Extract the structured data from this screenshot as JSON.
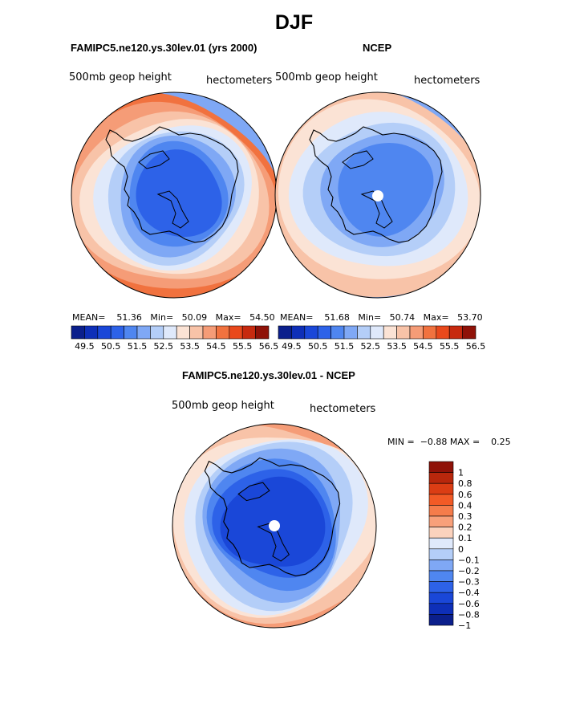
{
  "main_title": "DJF",
  "chart_data": [
    {
      "type": "heatmap",
      "projection": "south-polar-stereographic",
      "title": "FAMIPC5.ne120.ys.30lev.01 (yrs 2000)",
      "left_label": "500mb geop height",
      "right_label": "hectometers",
      "stats": {
        "mean_label": "MEAN=",
        "mean": "51.36",
        "min_label": "Min=",
        "min": "50.09",
        "max_label": "Max=",
        "max": "54.50"
      },
      "levels": [
        49.5,
        50.5,
        51.5,
        52.5,
        53.5,
        54.5,
        55.5,
        56.5
      ],
      "level_labels": [
        "49.5",
        "50.5",
        "51.5",
        "52.5",
        "53.5",
        "54.5",
        "55.5",
        "56.5"
      ],
      "contour_bands": [
        54.5,
        54.0,
        53.5,
        53.0,
        52.5,
        52.0,
        51.5,
        51.0,
        50.5
      ]
    },
    {
      "type": "heatmap",
      "projection": "south-polar-stereographic",
      "title": "NCEP",
      "left_label": "500mb geop height",
      "right_label": "hectometers",
      "stats": {
        "mean_label": "MEAN=",
        "mean": "51.68",
        "min_label": "Min=",
        "min": "50.74",
        "max_label": "Max=",
        "max": "53.70"
      },
      "levels": [
        49.5,
        50.5,
        51.5,
        52.5,
        53.5,
        54.5,
        55.5,
        56.5
      ],
      "level_labels": [
        "49.5",
        "50.5",
        "51.5",
        "52.5",
        "53.5",
        "54.5",
        "55.5",
        "56.5"
      ],
      "contour_bands": [
        53.7,
        53.0,
        52.5,
        52.0,
        51.5,
        51.0
      ]
    },
    {
      "type": "heatmap",
      "projection": "south-polar-stereographic",
      "title": "FAMIPC5.ne120.ys.30lev.01 - NCEP",
      "left_label": "500mb geop height",
      "right_label": "hectometers",
      "stats": {
        "min_label": "MIN =",
        "min": "−0.88",
        "max_label": "MAX =",
        "max": "0.25"
      },
      "levels": [
        -1,
        -0.8,
        -0.6,
        -0.4,
        -0.3,
        -0.2,
        -0.1,
        0,
        0.1,
        0.2,
        0.3,
        0.4,
        0.6,
        0.8,
        1
      ],
      "level_labels": [
        "1",
        "0.8",
        "0.6",
        "0.4",
        "0.3",
        "0.2",
        "0.1",
        "0",
        "−0.1",
        "−0.2",
        "−0.3",
        "−0.4",
        "−0.6",
        "−0.8",
        "−1"
      ],
      "contour_bands": [
        0.25,
        0.2,
        0.1,
        0,
        -0.1,
        -0.2,
        -0.4,
        -0.6,
        -0.8
      ]
    }
  ],
  "colors": {
    "full_bar": [
      "#0b1f8c",
      "#0e2fb8",
      "#1a47d8",
      "#2d62e8",
      "#4f86f0",
      "#7fa8f5",
      "#b4cef8",
      "#dfe9fb",
      "#fbe3d5",
      "#f8c3a8",
      "#f59c77",
      "#f1723f",
      "#e9491c",
      "#c72a0f",
      "#8f1208"
    ],
    "diff_bar": [
      "#8f1208",
      "#b8270c",
      "#db3d14",
      "#f25a26",
      "#f57c4b",
      "#f8a07a",
      "#fbd2bd",
      "#dfe9fb",
      "#b4cef8",
      "#7fa8f5",
      "#4f86f0",
      "#2d62e8",
      "#1a47d8",
      "#0e2fb8",
      "#0b1f8c"
    ]
  }
}
